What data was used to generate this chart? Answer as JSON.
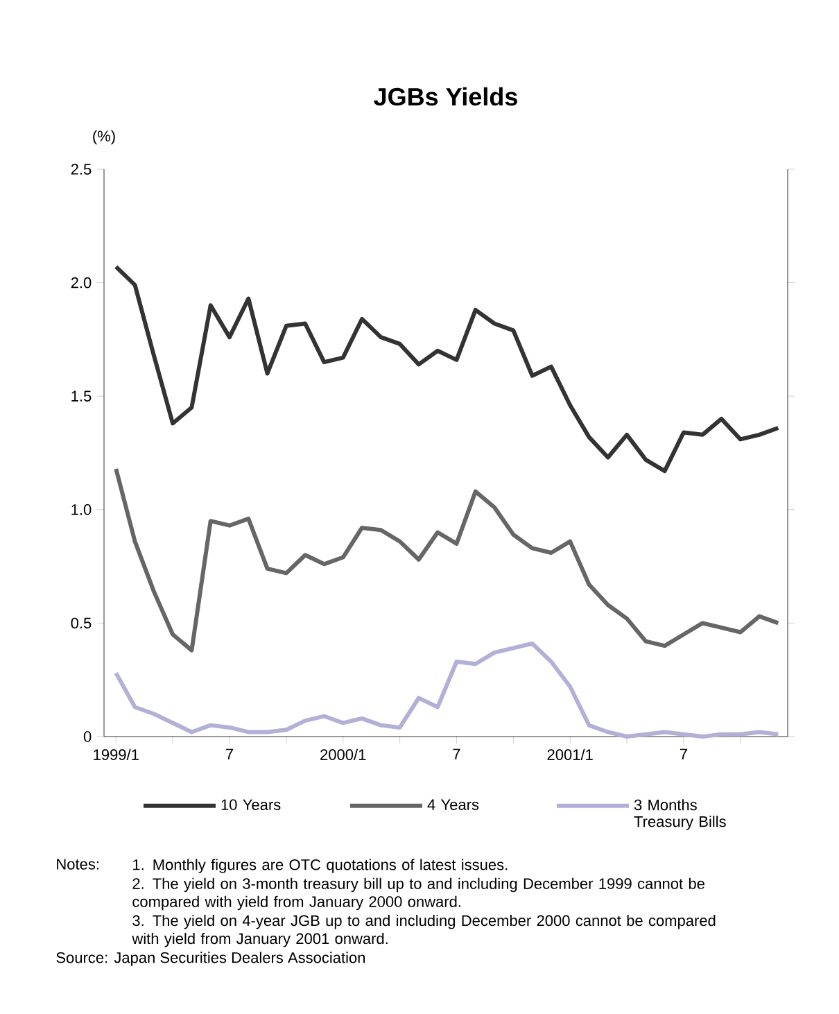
{
  "chart_data": {
    "type": "line",
    "title": "JGBs Yields",
    "ylabel": "(%)",
    "x": [
      "1999-01",
      "1999-02",
      "1999-03",
      "1999-04",
      "1999-05",
      "1999-06",
      "1999-07",
      "1999-08",
      "1999-09",
      "1999-10",
      "1999-11",
      "1999-12",
      "2000-01",
      "2000-02",
      "2000-03",
      "2000-04",
      "2000-05",
      "2000-06",
      "2000-07",
      "2000-08",
      "2000-09",
      "2000-10",
      "2000-11",
      "2000-12",
      "2001-01",
      "2001-02",
      "2001-03",
      "2001-04",
      "2001-05",
      "2001-06",
      "2001-07",
      "2001-08",
      "2001-09",
      "2001-10",
      "2001-11",
      "2001-12"
    ],
    "series": [
      {
        "name": "10 Years",
        "color": "#333333",
        "values": [
          2.07,
          1.99,
          1.68,
          1.38,
          1.45,
          1.9,
          1.76,
          1.93,
          1.6,
          1.81,
          1.82,
          1.65,
          1.67,
          1.84,
          1.76,
          1.73,
          1.64,
          1.7,
          1.66,
          1.88,
          1.82,
          1.79,
          1.59,
          1.63,
          1.46,
          1.32,
          1.23,
          1.33,
          1.22,
          1.17,
          1.34,
          1.33,
          1.4,
          1.31,
          1.33,
          1.36
        ]
      },
      {
        "name": "4 Years",
        "color": "#666666",
        "values": [
          1.18,
          0.86,
          0.64,
          0.45,
          0.38,
          0.95,
          0.93,
          0.96,
          0.74,
          0.72,
          0.8,
          0.76,
          0.79,
          0.92,
          0.91,
          0.86,
          0.78,
          0.9,
          0.85,
          1.08,
          1.01,
          0.89,
          0.83,
          0.81,
          0.86,
          0.67,
          0.58,
          0.52,
          0.42,
          0.4,
          0.45,
          0.5,
          0.48,
          0.46,
          0.53,
          0.5
        ]
      },
      {
        "name": "3 Months Treasury Bills",
        "color": "#b3b0d8",
        "values": [
          0.28,
          0.13,
          0.1,
          0.06,
          0.02,
          0.05,
          0.04,
          0.02,
          0.02,
          0.03,
          0.07,
          0.09,
          0.06,
          0.08,
          0.05,
          0.04,
          0.17,
          0.13,
          0.33,
          0.32,
          0.37,
          0.39,
          0.41,
          0.33,
          0.22,
          0.05,
          0.02,
          0.0,
          0.01,
          0.02,
          0.01,
          0.0,
          0.01,
          0.01,
          0.02,
          0.01
        ]
      }
    ],
    "xlim": [
      "1998-12-12",
      "2001-12-16"
    ],
    "xticks": [
      {
        "value": "1999-01",
        "label": "1999/1"
      },
      {
        "value": "1999-04",
        "label": null
      },
      {
        "value": "1999-07",
        "label": "7"
      },
      {
        "value": "1999-10",
        "label": null
      },
      {
        "value": "2000-01",
        "label": "2000/1"
      },
      {
        "value": "2000-04",
        "label": null
      },
      {
        "value": "2000-07",
        "label": "7"
      },
      {
        "value": "2000-10",
        "label": null
      },
      {
        "value": "2001-01",
        "label": "2001/1"
      },
      {
        "value": "2001-04",
        "label": null
      },
      {
        "value": "2001-07",
        "label": "7"
      },
      {
        "value": "2001-10",
        "label": null
      }
    ],
    "ylim": [
      0,
      2.5
    ],
    "yticks": [
      0,
      0.5,
      {
        "value": 1,
        "label": "1.0"
      },
      1.5,
      {
        "value": 2,
        "label": "2.0"
      },
      2.5
    ],
    "legend": "bottom",
    "marker": "none",
    "line_style": "solid",
    "annotations": [
      "Notes:",
      "1. Monthly figures are OTC quotations of latest issues.",
      "2. The yield on 3-month treasury bill up to and including December 1999 cannot be compared with yield from January 2000 onward.",
      "3. The yield on 4-year JGB up to and including December 2000 cannot be compared with yield from January 2001 onward.",
      "Source: Japan Securities Dealers Association"
    ]
  }
}
